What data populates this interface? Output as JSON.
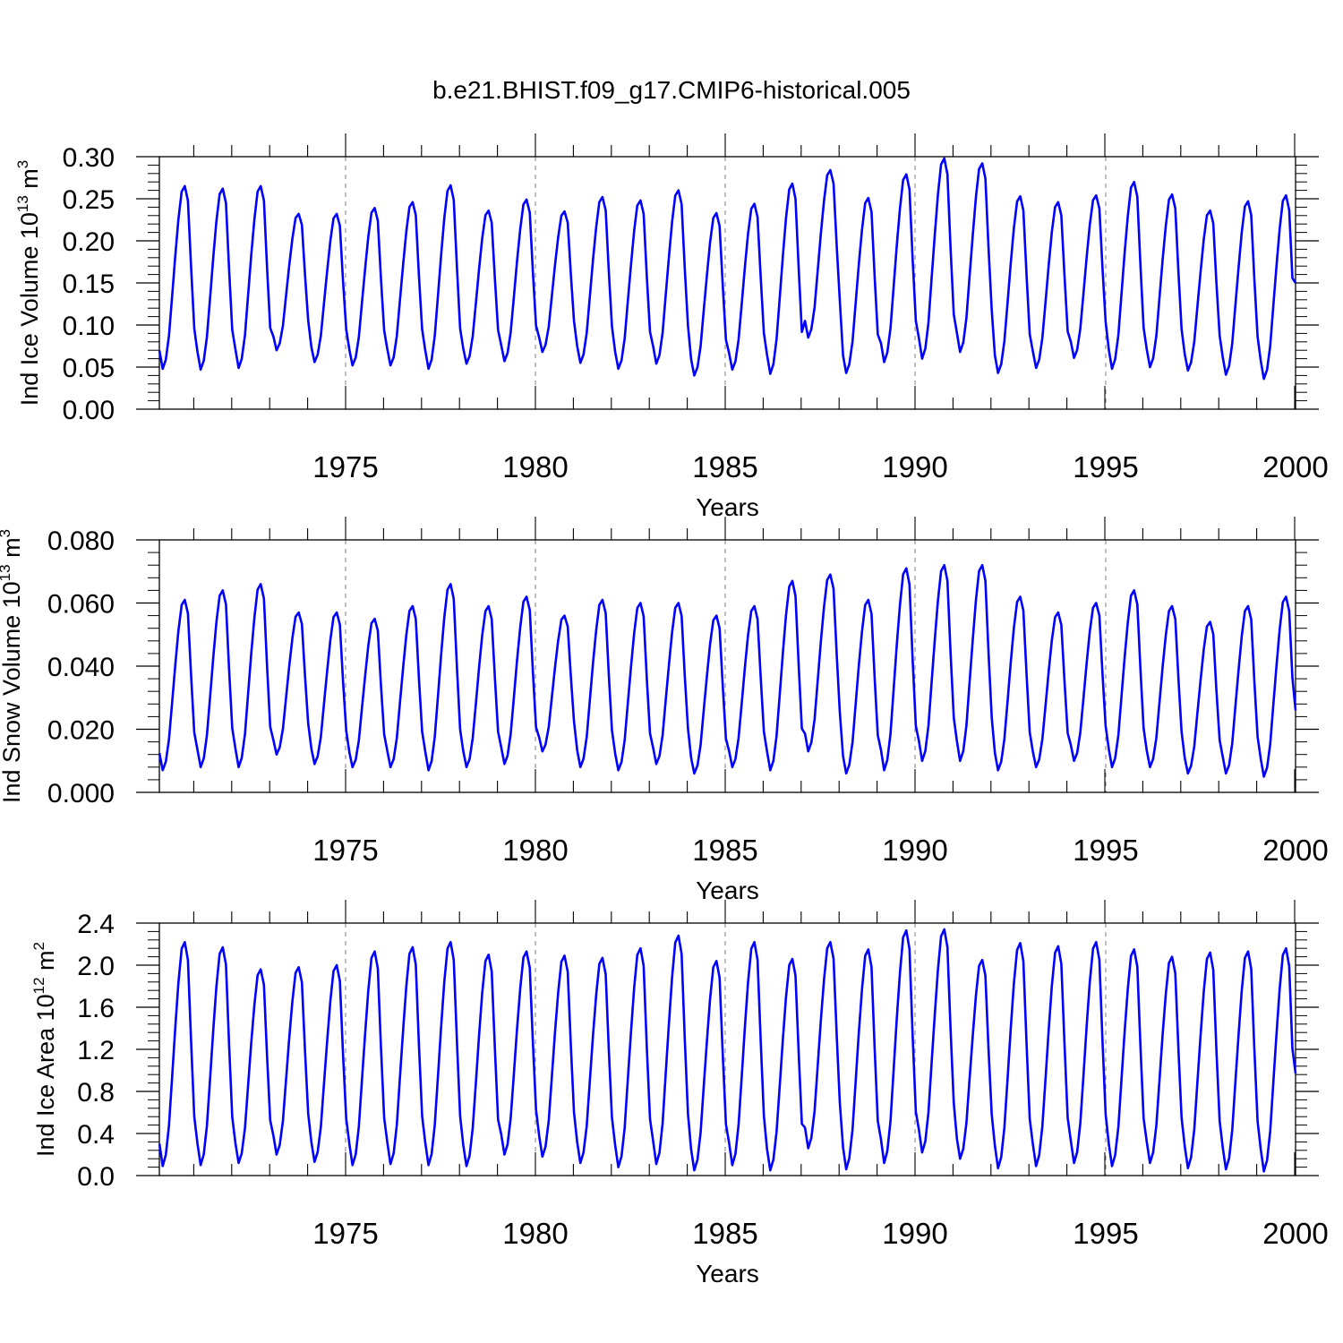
{
  "title": "b.e21.BHIST.f09_g17.CMIP6-historical.005",
  "colors": {
    "line": "#0000ff",
    "axis": "#000000",
    "grid": "#808080",
    "background": "#ffffff"
  },
  "chart_data": [
    {
      "type": "line",
      "title": "b.e21.BHIST.f09_g17.CMIP6-historical.005",
      "xlabel": "Years",
      "ylabel": "Ind Ice Volume 10^13 m^3",
      "ylabel_parts": {
        "prefix": "Ind Ice Volume 10",
        "exp1": "13",
        "unit": " m",
        "exp2": "3"
      },
      "xlim": [
        1970.08,
        2000.0
      ],
      "ylim": [
        0.0,
        0.3
      ],
      "yticks": [
        "0.00",
        "0.05",
        "0.10",
        "0.15",
        "0.20",
        "0.25",
        "0.30"
      ],
      "xticks": [
        "1975",
        "1980",
        "1985",
        "1990",
        "1995",
        "2000"
      ],
      "series": [
        {
          "name": "Ind Ice Volume",
          "x_start": 1970.083,
          "x_step": 0.0833333,
          "peaks": [
            0.265,
            0.262,
            0.265,
            0.232,
            0.232,
            0.239,
            0.246,
            0.266,
            0.236,
            0.249,
            0.235,
            0.252,
            0.248,
            0.26,
            0.233,
            0.244,
            0.268,
            0.284,
            0.251,
            0.279,
            0.298,
            0.292,
            0.253,
            0.246,
            0.254,
            0.27,
            0.255,
            0.236,
            0.247,
            0.254
          ],
          "troughs": [
            0.048,
            0.047,
            0.049,
            0.07,
            0.056,
            0.052,
            0.052,
            0.048,
            0.054,
            0.057,
            0.068,
            0.055,
            0.048,
            0.054,
            0.04,
            0.047,
            0.042,
            0.085,
            0.043,
            0.056,
            0.06,
            0.068,
            0.043,
            0.049,
            0.061,
            0.048,
            0.05,
            0.046,
            0.041,
            0.036
          ],
          "end_value": 0.15
        }
      ]
    },
    {
      "type": "line",
      "title": "",
      "xlabel": "Years",
      "ylabel": "Ind Snow Volume 10^13 m^3",
      "ylabel_parts": {
        "prefix": "Ind Snow Volume 10",
        "exp1": "13",
        "unit": " m",
        "exp2": "3"
      },
      "xlim": [
        1970.08,
        2000.0
      ],
      "ylim": [
        0.0,
        0.08
      ],
      "yticks": [
        "0.000",
        "0.020",
        "0.040",
        "0.060",
        "0.080"
      ],
      "xticks": [
        "1975",
        "1980",
        "1985",
        "1990",
        "1995",
        "2000"
      ],
      "series": [
        {
          "name": "Ind Snow Volume",
          "x_start": 1970.083,
          "x_step": 0.0833333,
          "peaks": [
            0.061,
            0.064,
            0.066,
            0.057,
            0.057,
            0.055,
            0.059,
            0.066,
            0.059,
            0.062,
            0.056,
            0.061,
            0.06,
            0.06,
            0.056,
            0.059,
            0.067,
            0.069,
            0.061,
            0.071,
            0.072,
            0.072,
            0.062,
            0.057,
            0.06,
            0.064,
            0.059,
            0.054,
            0.059,
            0.062
          ],
          "troughs": [
            0.007,
            0.008,
            0.008,
            0.012,
            0.009,
            0.008,
            0.008,
            0.007,
            0.008,
            0.009,
            0.013,
            0.008,
            0.007,
            0.009,
            0.006,
            0.008,
            0.007,
            0.013,
            0.006,
            0.007,
            0.01,
            0.01,
            0.007,
            0.008,
            0.01,
            0.008,
            0.008,
            0.006,
            0.006,
            0.005
          ],
          "end_value": 0.026
        }
      ]
    },
    {
      "type": "line",
      "title": "",
      "xlabel": "Years",
      "ylabel": "Ind Ice Area 10^12 m^2",
      "ylabel_parts": {
        "prefix": "Ind Ice Area 10",
        "exp1": "12",
        "unit": " m",
        "exp2": "2"
      },
      "xlim": [
        1970.08,
        2000.0
      ],
      "ylim": [
        0.0,
        2.4
      ],
      "yticks": [
        "0.0",
        "0.4",
        "0.8",
        "1.2",
        "1.6",
        "2.0",
        "2.4"
      ],
      "xticks": [
        "1975",
        "1980",
        "1985",
        "1990",
        "1995",
        "2000"
      ],
      "series": [
        {
          "name": "Ind Ice Area",
          "x_start": 1970.083,
          "x_step": 0.0833333,
          "peaks": [
            2.22,
            2.17,
            1.96,
            1.98,
            2.0,
            2.13,
            2.17,
            2.22,
            2.1,
            2.13,
            2.09,
            2.07,
            2.16,
            2.28,
            2.04,
            2.22,
            2.06,
            2.22,
            2.15,
            2.33,
            2.34,
            2.05,
            2.21,
            2.18,
            2.22,
            2.15,
            2.08,
            2.12,
            2.13,
            2.16
          ],
          "troughs": [
            0.09,
            0.1,
            0.12,
            0.2,
            0.13,
            0.1,
            0.11,
            0.1,
            0.09,
            0.2,
            0.18,
            0.12,
            0.08,
            0.11,
            0.05,
            0.1,
            0.05,
            0.26,
            0.06,
            0.12,
            0.22,
            0.16,
            0.07,
            0.09,
            0.12,
            0.09,
            0.12,
            0.07,
            0.06,
            0.04
          ],
          "end_value": 0.97
        }
      ]
    }
  ]
}
